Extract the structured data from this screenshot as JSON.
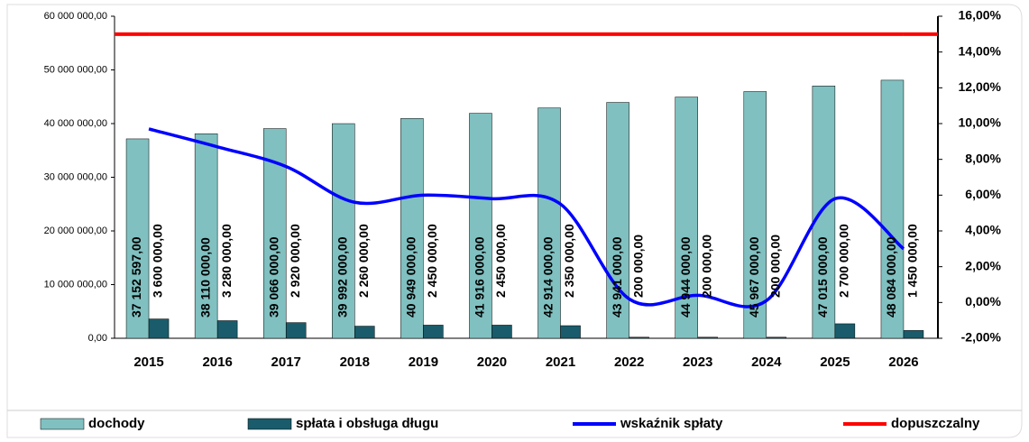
{
  "chart_data": {
    "type": "bar",
    "categories": [
      "2015",
      "2016",
      "2017",
      "2018",
      "2019",
      "2020",
      "2021",
      "2022",
      "2023",
      "2024",
      "2025",
      "2026"
    ],
    "ylim": [
      0,
      60000000
    ],
    "yticks": [
      {
        "value": 0,
        "label": "0,00"
      },
      {
        "value": 10000000,
        "label": "10 000 000,00"
      },
      {
        "value": 20000000,
        "label": "20 000 000,00"
      },
      {
        "value": 30000000,
        "label": "30 000 000,00"
      },
      {
        "value": 40000000,
        "label": "40 000 000,00"
      },
      {
        "value": 50000000,
        "label": "50 000 000,00"
      },
      {
        "value": 60000000,
        "label": "60 000 000,00"
      }
    ],
    "y2lim": [
      -2,
      16
    ],
    "y2ticks": [
      {
        "value": -2,
        "label": "-2,00%"
      },
      {
        "value": 0,
        "label": "0,00%"
      },
      {
        "value": 2,
        "label": "2,00%"
      },
      {
        "value": 4,
        "label": "4,00%"
      },
      {
        "value": 6,
        "label": "6,00%"
      },
      {
        "value": 8,
        "label": "8,00%"
      },
      {
        "value": 10,
        "label": "10,00%"
      },
      {
        "value": 12,
        "label": "12,00%"
      },
      {
        "value": 14,
        "label": "14,00%"
      },
      {
        "value": 16,
        "label": "16,00%"
      }
    ],
    "series": [
      {
        "name": "dochody",
        "type": "bar",
        "color": "#80c0c0",
        "values": [
          37152597,
          38110000,
          39066000,
          39992000,
          40949000,
          41916000,
          42914000,
          43941000,
          44944000,
          45967000,
          47015000,
          48084000
        ],
        "value_labels": [
          "37 152 597,00",
          "38 110 000,00",
          "39 066 000,00",
          "39 992 000,00",
          "40 949 000,00",
          "41 916 000,00",
          "42 914 000,00",
          "43 941 000,00",
          "44 944 000,00",
          "45 967 000,00",
          "47 015 000,00",
          "48 084 000,00"
        ]
      },
      {
        "name": "spłata i obsługa długu",
        "type": "bar",
        "color": "#1a5c6b",
        "values": [
          3600000,
          3280000,
          2920000,
          2260000,
          2450000,
          2450000,
          2350000,
          200000,
          200000,
          200000,
          2700000,
          1450000
        ],
        "value_labels": [
          "3 600 000,00",
          "3 280 000,00",
          "2 920 000,00",
          "2 260 000,00",
          "2 450 000,00",
          "2 450 000,00",
          "2 350 000,00",
          "200 000,00",
          "200 000,00",
          "200 000,00",
          "2 700 000,00",
          "1 450 000,00"
        ]
      },
      {
        "name": "wskaźnik spłaty",
        "type": "line",
        "axis": "y2",
        "color": "#0000ff",
        "values": [
          9.7,
          8.7,
          7.6,
          5.6,
          6.0,
          5.8,
          5.5,
          0.2,
          0.4,
          0.1,
          5.8,
          3.0
        ]
      },
      {
        "name": "dopuszczalny",
        "type": "line",
        "axis": "y2",
        "color": "#ff0000",
        "values": [
          15,
          15,
          15,
          15,
          15,
          15,
          15,
          15,
          15,
          15,
          15,
          15
        ]
      }
    ]
  }
}
